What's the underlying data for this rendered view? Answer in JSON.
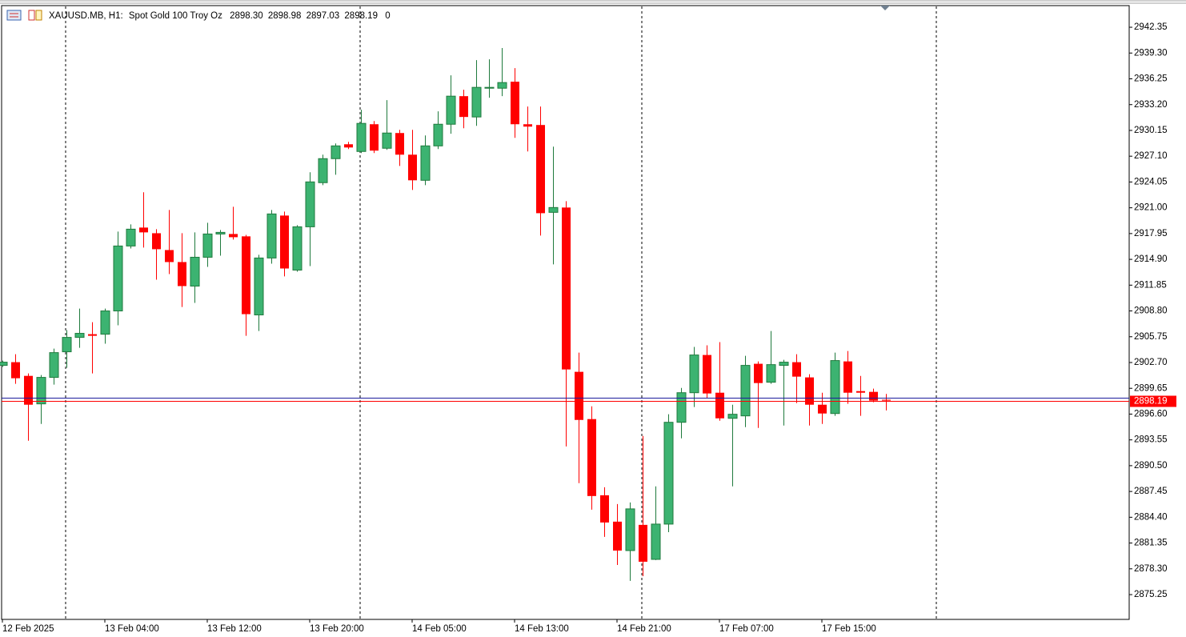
{
  "header": {
    "symbol": "XAUUSD.MB, H1:",
    "description": "Spot Gold 100 Troy Oz",
    "ohlc": [
      "2898.30",
      "2898.98",
      "2897.03",
      "2898.19"
    ],
    "volume": 0
  },
  "chart_data": {
    "type": "candlestick",
    "categories": [
      "12 Feb 2025",
      null,
      null,
      null,
      null,
      null,
      null,
      null,
      "13 Feb 04:00",
      null,
      null,
      null,
      null,
      null,
      null,
      null,
      "13 Feb 12:00",
      null,
      null,
      null,
      null,
      null,
      null,
      null,
      "13 Feb 20:00",
      null,
      null,
      null,
      null,
      null,
      null,
      null,
      "14 Feb 05:00",
      null,
      null,
      null,
      null,
      null,
      null,
      null,
      "14 Feb 13:00",
      null,
      null,
      null,
      null,
      null,
      null,
      null,
      "14 Feb 21:00",
      null,
      null,
      null,
      null,
      null,
      null,
      null,
      "17 Feb 07:00",
      null,
      null,
      null,
      null,
      null,
      null,
      null,
      "17 Feb 15:00",
      null,
      null,
      null,
      null,
      null
    ],
    "open": [
      2902.36,
      2902.74,
      2901.12,
      2897.81,
      2900.94,
      2903.97,
      2905.67,
      2906.05,
      2906.05,
      2908.8,
      2916.48,
      2918.66,
      2917.99,
      2916.0,
      2914.58,
      2911.74,
      2915.15,
      2917.9,
      2917.9,
      2917.62,
      2908.33,
      2915.06,
      2920.08,
      2913.63,
      2918.75,
      2923.97,
      2926.81,
      2928.51,
      2927.66,
      2930.88,
      2928.04,
      2929.84,
      2927.28,
      2924.25,
      2928.32,
      2930.88,
      2934.2,
      2931.74,
      2935.14,
      2935.14,
      2935.91,
      2930.88,
      2930.79,
      2920.46,
      2921.03,
      2901.6,
      2896.01,
      2887.0,
      2883.88,
      2880.46,
      2883.5,
      2879.42,
      2883.59,
      2895.63,
      2899.13,
      2903.59,
      2899.13,
      2896.1,
      2896.39,
      2902.55,
      2900.37,
      2902.36,
      2902.74,
      2900.94,
      2897.71,
      2896.67,
      2902.83,
      2899.32,
      2899.23,
      2898.3
    ],
    "high": [
      2902.93,
      2903.68,
      2901.41,
      2901.22,
      2904.35,
      2906.53,
      2909.08,
      2907.47,
      2909.08,
      2918.18,
      2919.04,
      2922.83,
      2918.47,
      2920.74,
      2918.0,
      2918.09,
      2919.23,
      2918.37,
      2921.12,
      2917.8,
      2915.44,
      2920.74,
      2920.55,
      2918.94,
      2925.2,
      2927.28,
      2928.61,
      2928.8,
      2932.59,
      2931.26,
      2933.73,
      2930.22,
      2930.22,
      2929.56,
      2932.4,
      2936.66,
      2934.96,
      2938.46,
      2938.56,
      2939.89,
      2937.52,
      2932.97,
      2932.97,
      2928.23,
      2921.78,
      2903.87,
      2897.52,
      2887.95,
      2885.96,
      2886.15,
      2894.02,
      2888.05,
      2896.58,
      2899.7,
      2904.54,
      2904.73,
      2905.11,
      2897.71,
      2903.49,
      2902.83,
      2906.43,
      2903.02,
      2903.68,
      2901.31,
      2899.13,
      2903.87,
      2904.06,
      2901.12,
      2899.61,
      2898.98
    ],
    "low": [
      2902.17,
      2900.18,
      2893.45,
      2895.44,
      2900.08,
      2902.07,
      2904.44,
      2901.41,
      2904.92,
      2907.1,
      2916.19,
      2916.29,
      2912.5,
      2913.16,
      2909.27,
      2909.75,
      2914.01,
      2915.34,
      2917.24,
      2905.86,
      2906.43,
      2914.39,
      2912.88,
      2913.44,
      2914.11,
      2923.68,
      2924.91,
      2927.94,
      2927.47,
      2927.47,
      2927.85,
      2925.95,
      2923.11,
      2923.68,
      2927.94,
      2929.75,
      2930.41,
      2930.69,
      2934.01,
      2934.2,
      2929.27,
      2927.66,
      2917.71,
      2914.3,
      2892.78,
      2888.43,
      2885.3,
      2882.08,
      2878.76,
      2876.87,
      2877.43,
      2879.33,
      2882.64,
      2893.73,
      2897.43,
      2898.47,
      2895.82,
      2888.05,
      2895.06,
      2894.96,
      2900.18,
      2895.25,
      2897.9,
      2895.25,
      2895.44,
      2896.39,
      2897.81,
      2896.39,
      2898.0,
      2897.03
    ],
    "close": [
      2902.74,
      2900.84,
      2897.71,
      2900.94,
      2903.87,
      2905.67,
      2906.15,
      2905.86,
      2908.8,
      2916.48,
      2918.47,
      2918.09,
      2916.1,
      2914.58,
      2911.74,
      2915.15,
      2917.9,
      2918.09,
      2917.52,
      2908.42,
      2915.06,
      2920.27,
      2913.82,
      2918.75,
      2924.06,
      2926.81,
      2928.32,
      2928.13,
      2930.98,
      2927.76,
      2929.84,
      2927.28,
      2924.25,
      2928.32,
      2930.88,
      2934.2,
      2931.74,
      2935.24,
      2935.24,
      2935.81,
      2930.88,
      2930.6,
      2920.36,
      2921.03,
      2901.88,
      2895.91,
      2886.91,
      2883.78,
      2880.46,
      2885.39,
      2879.14,
      2883.59,
      2895.63,
      2899.13,
      2903.59,
      2899.04,
      2896.1,
      2896.58,
      2902.36,
      2900.27,
      2902.45,
      2902.74,
      2901.03,
      2897.71,
      2896.67,
      2902.93,
      2899.13,
      2899.13,
      2898.19,
      2898.19
    ],
    "up_color": "#3cb371",
    "up_edge": "#1f7a3d",
    "down_color": "#ff0000",
    "bid": 2898.19,
    "bid_color": "#ff0000",
    "ask": 2898.58,
    "ask_color": "#1c1c9c",
    "ylim": [
      2872.32,
      2944.91
    ],
    "yticks": [
      2942.35,
      {
        "value": 2939.3,
        "label": "2939.30"
      },
      2936.25,
      {
        "value": 2933.2,
        "label": "2933.20"
      },
      2930.15,
      {
        "value": 2927.1,
        "label": "2927.10"
      },
      2924.05,
      {
        "value": 2921,
        "label": "2921.00"
      },
      2917.95,
      {
        "value": 2914.9,
        "label": "2914.90"
      },
      2911.85,
      {
        "value": 2908.8,
        "label": "2908.80"
      },
      2905.75,
      {
        "value": 2902.7,
        "label": "2902.70"
      },
      2899.65,
      {
        "value": 2896.6,
        "label": "2896.60"
      },
      2893.55,
      {
        "value": 2890.5,
        "label": "2890.50"
      },
      2887.45,
      {
        "value": 2884.4,
        "label": "2884.40"
      },
      2881.35,
      {
        "value": 2878.3,
        "label": "2878.30"
      },
      2875.25
    ]
  }
}
